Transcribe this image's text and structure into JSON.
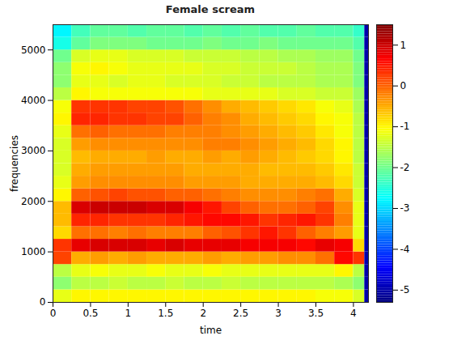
{
  "chart_data": {
    "type": "heatmap",
    "title": "Female scream",
    "x_label": "time",
    "y_label": "frequencies",
    "xlim": [
      0,
      4.2
    ],
    "xticks": [
      0,
      0.5,
      1,
      1.5,
      2,
      2.5,
      3,
      3.5,
      4
    ],
    "ylim": [
      0,
      5500
    ],
    "yticks": [
      0,
      1000,
      2000,
      3000,
      4000,
      5000
    ],
    "color": "jet",
    "x_bins": [
      0,
      0.25,
      0.5,
      0.75,
      1,
      1.25,
      1.5,
      1.75,
      2,
      2.25,
      2.5,
      2.75,
      3,
      3.25,
      3.5,
      3.75,
      4,
      4.15,
      4.2
    ],
    "y_bins": [
      0,
      250,
      500,
      750,
      1000,
      1250,
      1500,
      1750,
      2000,
      2250,
      2500,
      2750,
      3000,
      3250,
      3500,
      3750,
      4000,
      4250,
      4500,
      4750,
      5000,
      5250,
      5500
    ],
    "values": [
      [
        -1.2,
        -1.0,
        -1.0,
        -1.0,
        -1.0,
        -1.0,
        -1.0,
        -1.0,
        -1.0,
        -1.0,
        -1.0,
        -1.0,
        -1.0,
        -1.0,
        -1.1,
        -1.1,
        -1.3,
        -5
      ],
      [
        -1.8,
        -1.5,
        -1.5,
        -1.4,
        -1.5,
        -1.5,
        -1.4,
        -1.5,
        -1.5,
        -1.4,
        -1.5,
        -1.5,
        -1.5,
        -1.5,
        -1.5,
        -1.6,
        -1.8,
        -5
      ],
      [
        -1.5,
        -1.2,
        -1.1,
        -1.2,
        -1.2,
        -1.1,
        -1.2,
        -1.2,
        -1.1,
        -1.2,
        -1.2,
        -1.2,
        -1.2,
        -1.2,
        -1.2,
        -1.0,
        -1.5,
        -5
      ],
      [
        0.2,
        -0.5,
        -0.4,
        -0.5,
        -0.4,
        -0.5,
        -0.5,
        -0.5,
        -0.4,
        -0.5,
        -0.4,
        -0.4,
        -0.3,
        -0.3,
        -0.1,
        0.6,
        0.3,
        -5
      ],
      [
        0.3,
        0.8,
        0.9,
        0.9,
        0.9,
        0.8,
        0.9,
        0.8,
        0.8,
        0.8,
        0.7,
        0.7,
        0.7,
        0.6,
        0.8,
        0.7,
        -0.8,
        -5
      ],
      [
        -0.8,
        -0.1,
        -0.1,
        -0.2,
        -0.1,
        -0.2,
        -0.2,
        -0.2,
        0.0,
        0.1,
        0.3,
        0.5,
        0.3,
        0.0,
        -0.2,
        -0.4,
        -1.2,
        -5
      ],
      [
        -0.6,
        0.4,
        0.4,
        0.3,
        0.3,
        0.3,
        0.4,
        0.5,
        0.6,
        0.6,
        0.5,
        0.3,
        0.4,
        0.5,
        0.3,
        -0.2,
        -1.2,
        -5
      ],
      [
        -0.6,
        0.9,
        1.0,
        1.0,
        1.0,
        0.9,
        0.9,
        0.7,
        0.5,
        0.2,
        0.0,
        -0.1,
        -0.1,
        0.0,
        0.2,
        -0.3,
        -1.2,
        -5
      ],
      [
        -1.0,
        0.0,
        0.1,
        0.2,
        0.1,
        0.1,
        0.0,
        0.0,
        -0.1,
        -0.2,
        -0.3,
        -0.3,
        -0.3,
        -0.2,
        -0.1,
        -0.5,
        -1.3,
        -5
      ],
      [
        -1.2,
        -0.4,
        -0.3,
        -0.3,
        -0.3,
        -0.3,
        -0.3,
        -0.4,
        -0.4,
        -0.4,
        -0.5,
        -0.5,
        -0.5,
        -0.5,
        -0.6,
        -0.8,
        -1.4,
        -5
      ],
      [
        -1.3,
        -0.5,
        -0.4,
        -0.4,
        -0.4,
        -0.4,
        -0.4,
        -0.5,
        -0.5,
        -0.5,
        -0.5,
        -0.6,
        -0.6,
        -0.6,
        -0.7,
        -0.9,
        -1.4,
        -5
      ],
      [
        -1.3,
        -0.6,
        -0.5,
        -0.5,
        -0.5,
        -0.4,
        -0.5,
        -0.5,
        -0.4,
        -0.5,
        -0.4,
        -0.5,
        -0.6,
        -0.7,
        -0.8,
        -1.0,
        -1.5,
        -5
      ],
      [
        -1.3,
        -0.4,
        -0.3,
        -0.3,
        -0.3,
        -0.3,
        -0.3,
        -0.3,
        -0.2,
        -0.2,
        -0.3,
        -0.4,
        -0.5,
        -0.6,
        -0.8,
        -1.0,
        -1.5,
        -5
      ],
      [
        -1.2,
        -0.1,
        0.0,
        -0.1,
        -0.1,
        -0.1,
        -0.2,
        -0.2,
        -0.2,
        -0.3,
        -0.4,
        -0.5,
        -0.6,
        -0.7,
        -0.9,
        -1.1,
        -1.5,
        -5
      ],
      [
        -1.0,
        0.4,
        0.4,
        0.3,
        0.3,
        0.2,
        0.2,
        0.0,
        -0.2,
        -0.3,
        -0.5,
        -0.6,
        -0.7,
        -0.8,
        -1.0,
        -1.1,
        -1.5,
        -5
      ],
      [
        -1.1,
        0.3,
        0.3,
        0.3,
        0.2,
        0.2,
        0.1,
        -0.1,
        -0.3,
        -0.5,
        -0.6,
        -0.7,
        -0.8,
        -0.9,
        -1.1,
        -1.2,
        -1.6,
        -5
      ],
      [
        -1.5,
        -1.0,
        -1.1,
        -1.1,
        -1.1,
        -1.1,
        -1.1,
        -1.1,
        -1.2,
        -1.2,
        -1.2,
        -1.2,
        -1.3,
        -1.3,
        -1.4,
        -1.4,
        -1.7,
        -5
      ],
      [
        -1.8,
        -1.2,
        -1.2,
        -1.3,
        -1.2,
        -1.2,
        -1.3,
        -1.3,
        -1.3,
        -1.4,
        -1.4,
        -1.5,
        -1.5,
        -1.5,
        -1.6,
        -1.6,
        -1.9,
        -5
      ],
      [
        -1.8,
        -1.1,
        -1.0,
        -1.1,
        -1.2,
        -1.2,
        -1.2,
        -1.2,
        -1.3,
        -1.3,
        -1.4,
        -1.4,
        -1.4,
        -1.5,
        -1.6,
        -1.6,
        -1.9,
        -5
      ],
      [
        -2.0,
        -1.3,
        -1.2,
        -1.2,
        -1.3,
        -1.3,
        -1.3,
        -1.4,
        -1.4,
        -1.4,
        -1.5,
        -1.5,
        -1.6,
        -1.6,
        -1.7,
        -1.7,
        -2.0,
        -5
      ],
      [
        -2.6,
        -2.1,
        -1.9,
        -1.9,
        -1.9,
        -2.0,
        -2.0,
        -2.0,
        -1.9,
        -2.0,
        -2.0,
        -1.9,
        -2.0,
        -2.0,
        -2.0,
        -2.0,
        -2.2,
        -5
      ],
      [
        -2.8,
        -2.3,
        -2.1,
        -2.1,
        -2.2,
        -2.1,
        -2.1,
        -2.2,
        -2.1,
        -2.2,
        -2.1,
        -2.2,
        -2.2,
        -2.1,
        -2.2,
        -2.2,
        -2.4,
        -5
      ]
    ],
    "colorbar_range": [
      -5.3,
      1.5
    ],
    "colorbar_ticks": [
      -5,
      -4,
      -3,
      -2,
      -1,
      0,
      1
    ]
  }
}
